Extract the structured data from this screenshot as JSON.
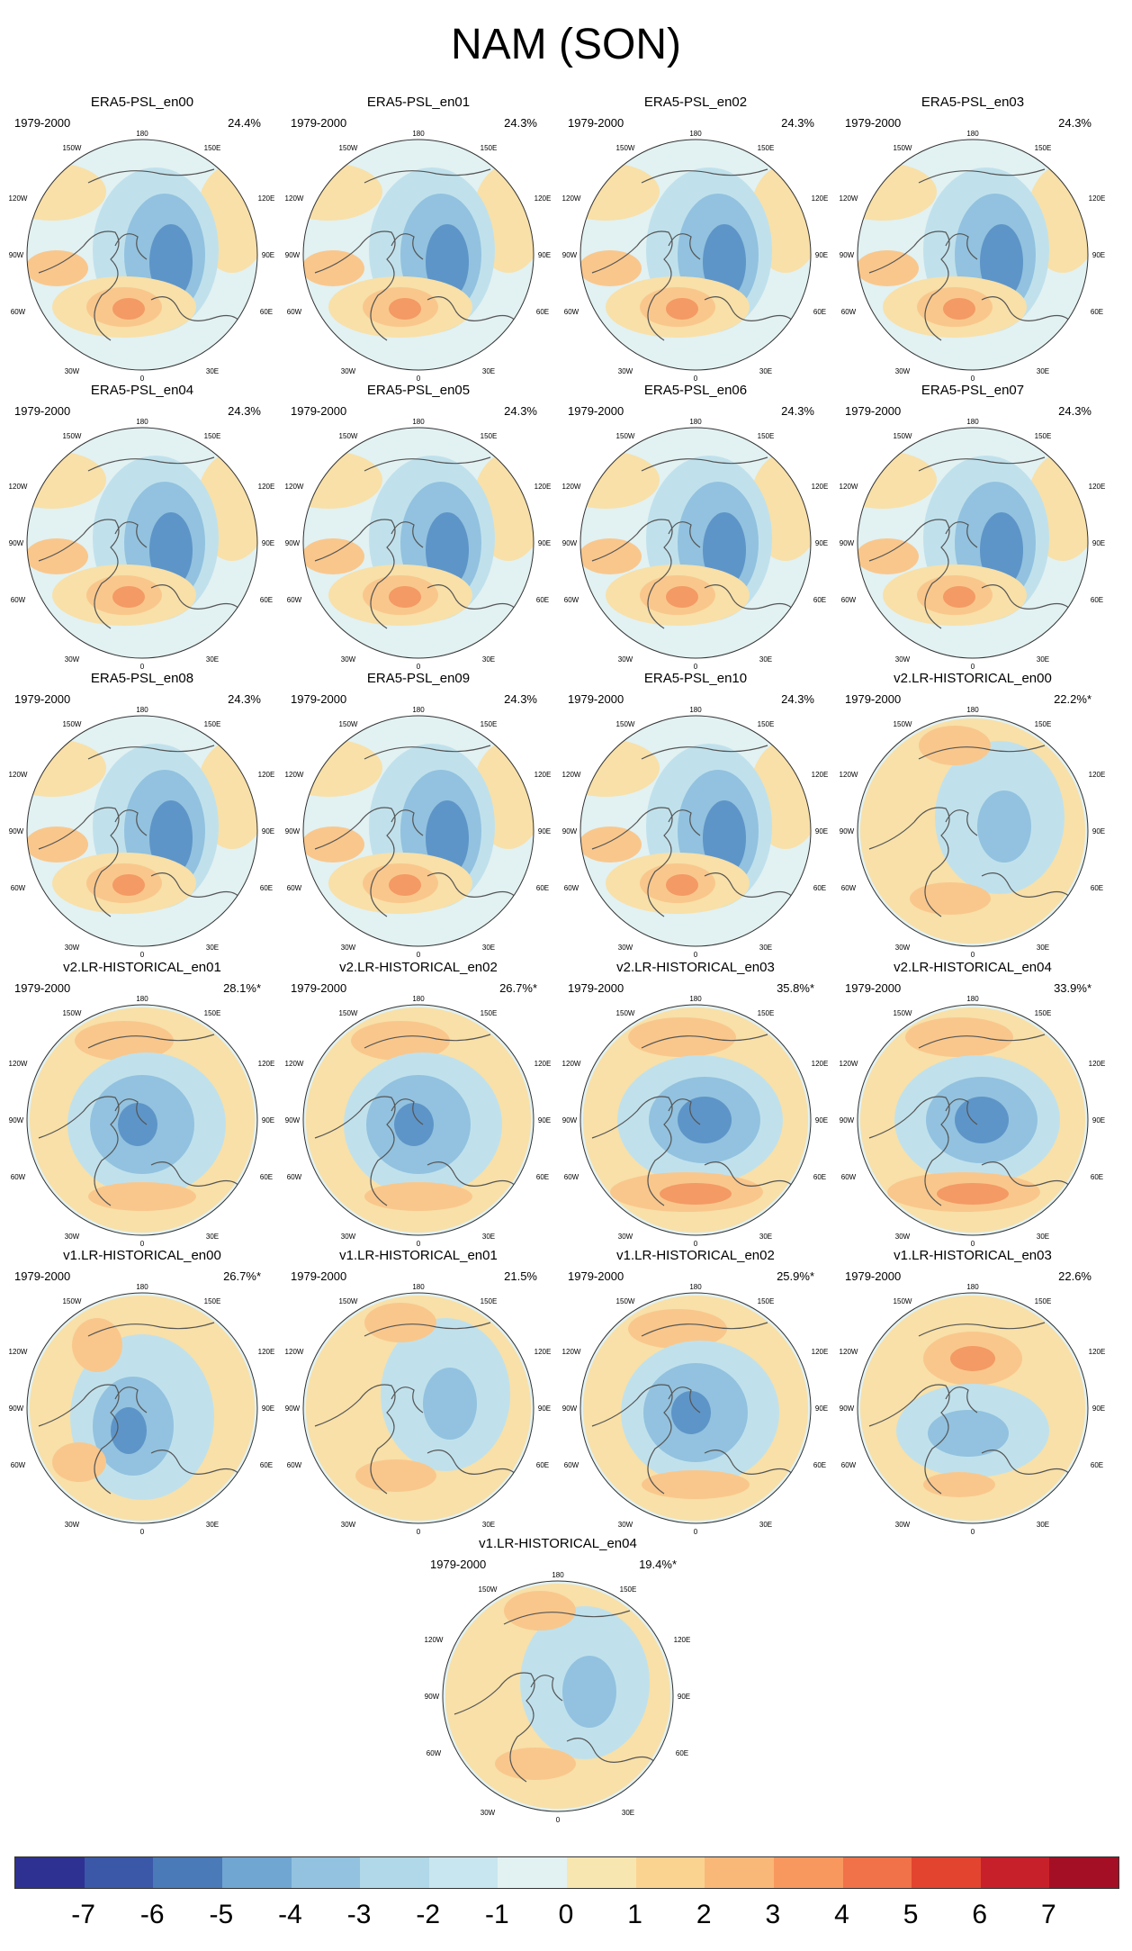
{
  "title": "NAM (SON)",
  "period": "1979-2000",
  "lon_labels": {
    "top": "180",
    "tl": "150W",
    "tr": "150E",
    "ul": "120W",
    "ur": "120E",
    "l": "90W",
    "r": "90E",
    "ll": "60W",
    "lr": "60E",
    "bl": "30W",
    "br": "30E",
    "bottom": "0"
  },
  "colors": {
    "ocean": "#e2f1f2",
    "land_line": "#555555",
    "pos1": "#f8e0a8",
    "pos2": "#f9c78c",
    "pos3": "#f49a64",
    "neg1": "#c0e1ec",
    "neg2": "#92c2df",
    "neg3": "#5e95c8"
  },
  "panels": [
    {
      "title": "ERA5-PSL_en00",
      "pct": "24.4%",
      "pattern": "era5"
    },
    {
      "title": "ERA5-PSL_en01",
      "pct": "24.3%",
      "pattern": "era5"
    },
    {
      "title": "ERA5-PSL_en02",
      "pct": "24.3%",
      "pattern": "era5"
    },
    {
      "title": "ERA5-PSL_en03",
      "pct": "24.3%",
      "pattern": "era5"
    },
    {
      "title": "ERA5-PSL_en04",
      "pct": "24.3%",
      "pattern": "era5"
    },
    {
      "title": "ERA5-PSL_en05",
      "pct": "24.3%",
      "pattern": "era5"
    },
    {
      "title": "ERA5-PSL_en06",
      "pct": "24.3%",
      "pattern": "era5"
    },
    {
      "title": "ERA5-PSL_en07",
      "pct": "24.3%",
      "pattern": "era5"
    },
    {
      "title": "ERA5-PSL_en08",
      "pct": "24.3%",
      "pattern": "era5"
    },
    {
      "title": "ERA5-PSL_en09",
      "pct": "24.3%",
      "pattern": "era5"
    },
    {
      "title": "ERA5-PSL_en10",
      "pct": "24.3%",
      "pattern": "era5"
    },
    {
      "title": "v2.LR-HISTORICAL_en00",
      "pct": "22.2%*",
      "pattern": "weak"
    },
    {
      "title": "v2.LR-HISTORICAL_en01",
      "pct": "28.1%*",
      "pattern": "ring"
    },
    {
      "title": "v2.LR-HISTORICAL_en02",
      "pct": "26.7%*",
      "pattern": "ring"
    },
    {
      "title": "v2.LR-HISTORICAL_en03",
      "pct": "35.8%*",
      "pattern": "strong"
    },
    {
      "title": "v2.LR-HISTORICAL_en04",
      "pct": "33.9%*",
      "pattern": "strong"
    },
    {
      "title": "v1.LR-HISTORICAL_en00",
      "pct": "26.7%*",
      "pattern": "shifted"
    },
    {
      "title": "v1.LR-HISTORICAL_en01",
      "pct": "21.5%",
      "pattern": "weak"
    },
    {
      "title": "v1.LR-HISTORICAL_en02",
      "pct": "25.9%*",
      "pattern": "ring"
    },
    {
      "title": "v1.LR-HISTORICAL_en03",
      "pct": "22.6%",
      "pattern": "pacific"
    },
    {
      "title": "v1.LR-HISTORICAL_en04",
      "pct": "19.4%*",
      "pattern": "weak"
    }
  ],
  "colorbar": {
    "colors": [
      "#2e3192",
      "#3b57a8",
      "#4a7ab8",
      "#6fa6d2",
      "#92c2df",
      "#b0d8e8",
      "#c8e6ef",
      "#e2f1f2",
      "#f8e6b0",
      "#fbd391",
      "#f9b878",
      "#f8985f",
      "#f17149",
      "#e3442f",
      "#c8202b",
      "#a50f25"
    ],
    "labels": [
      "-7",
      "-6",
      "-5",
      "-4",
      "-3",
      "-2",
      "-1",
      "0",
      "1",
      "2",
      "3",
      "4",
      "5",
      "6",
      "7"
    ]
  }
}
